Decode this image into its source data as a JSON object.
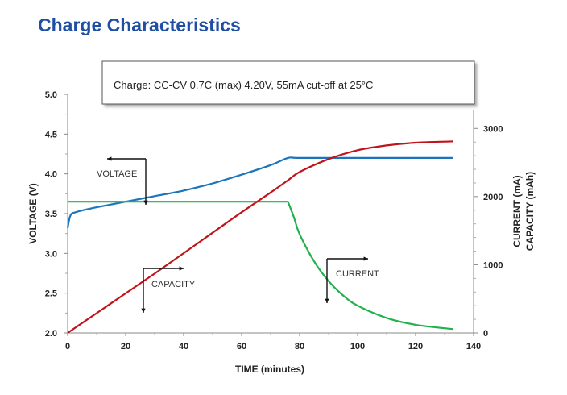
{
  "page": {
    "title": "Charge Characteristics"
  },
  "chart_data": {
    "type": "line",
    "title": "Charge Characteristics",
    "annotation_box": "Charge:   CC-CV 0.7C (max) 4.20V, 55mA cut-off at 25°C",
    "xlabel": "TIME (minutes)",
    "ylabel_left": "VOLTAGE (V)",
    "ylabel_right_1": "CURRENT (mA)",
    "ylabel_right_2": "CAPACITY (mAh)",
    "xlim": [
      0,
      140
    ],
    "ylim_left": [
      2.0,
      5.0
    ],
    "ylim_right": [
      0,
      3500
    ],
    "x_ticks": [
      "0",
      "20",
      "40",
      "60",
      "80",
      "100",
      "120",
      "140"
    ],
    "y_left_ticks": [
      "5.0",
      "4.5",
      "4.0",
      "3.5",
      "3.0",
      "2.5",
      "2.0"
    ],
    "y_right_ticks": [
      "3000",
      "2000",
      "1000",
      "0"
    ],
    "grid": false,
    "series_labels": {
      "voltage": "VOLTAGE",
      "capacity": "CAPACITY",
      "current": "CURRENT"
    },
    "series": [
      {
        "key": "voltage",
        "axis": "left",
        "color": "#1a75bc",
        "x": [
          0,
          1,
          3,
          10,
          20,
          30,
          40,
          50,
          60,
          70,
          76,
          80,
          100,
          120,
          133
        ],
        "y": [
          3.32,
          3.48,
          3.52,
          3.58,
          3.65,
          3.72,
          3.79,
          3.88,
          3.99,
          4.11,
          4.2,
          4.2,
          4.2,
          4.2,
          4.2
        ]
      },
      {
        "key": "current",
        "axis": "right",
        "color": "#22b14c",
        "x": [
          0,
          76,
          78,
          80,
          85,
          90,
          95,
          100,
          110,
          120,
          133
        ],
        "y": [
          1925,
          1925,
          1700,
          1450,
          1050,
          760,
          550,
          400,
          220,
          120,
          55
        ]
      },
      {
        "key": "capacity",
        "axis": "right",
        "color": "#c0141c",
        "x": [
          0,
          10,
          20,
          30,
          40,
          50,
          60,
          70,
          76,
          80,
          90,
          100,
          110,
          120,
          133
        ],
        "y": [
          0,
          290,
          580,
          870,
          1170,
          1470,
          1770,
          2060,
          2240,
          2360,
          2550,
          2680,
          2750,
          2790,
          2810
        ]
      }
    ]
  }
}
